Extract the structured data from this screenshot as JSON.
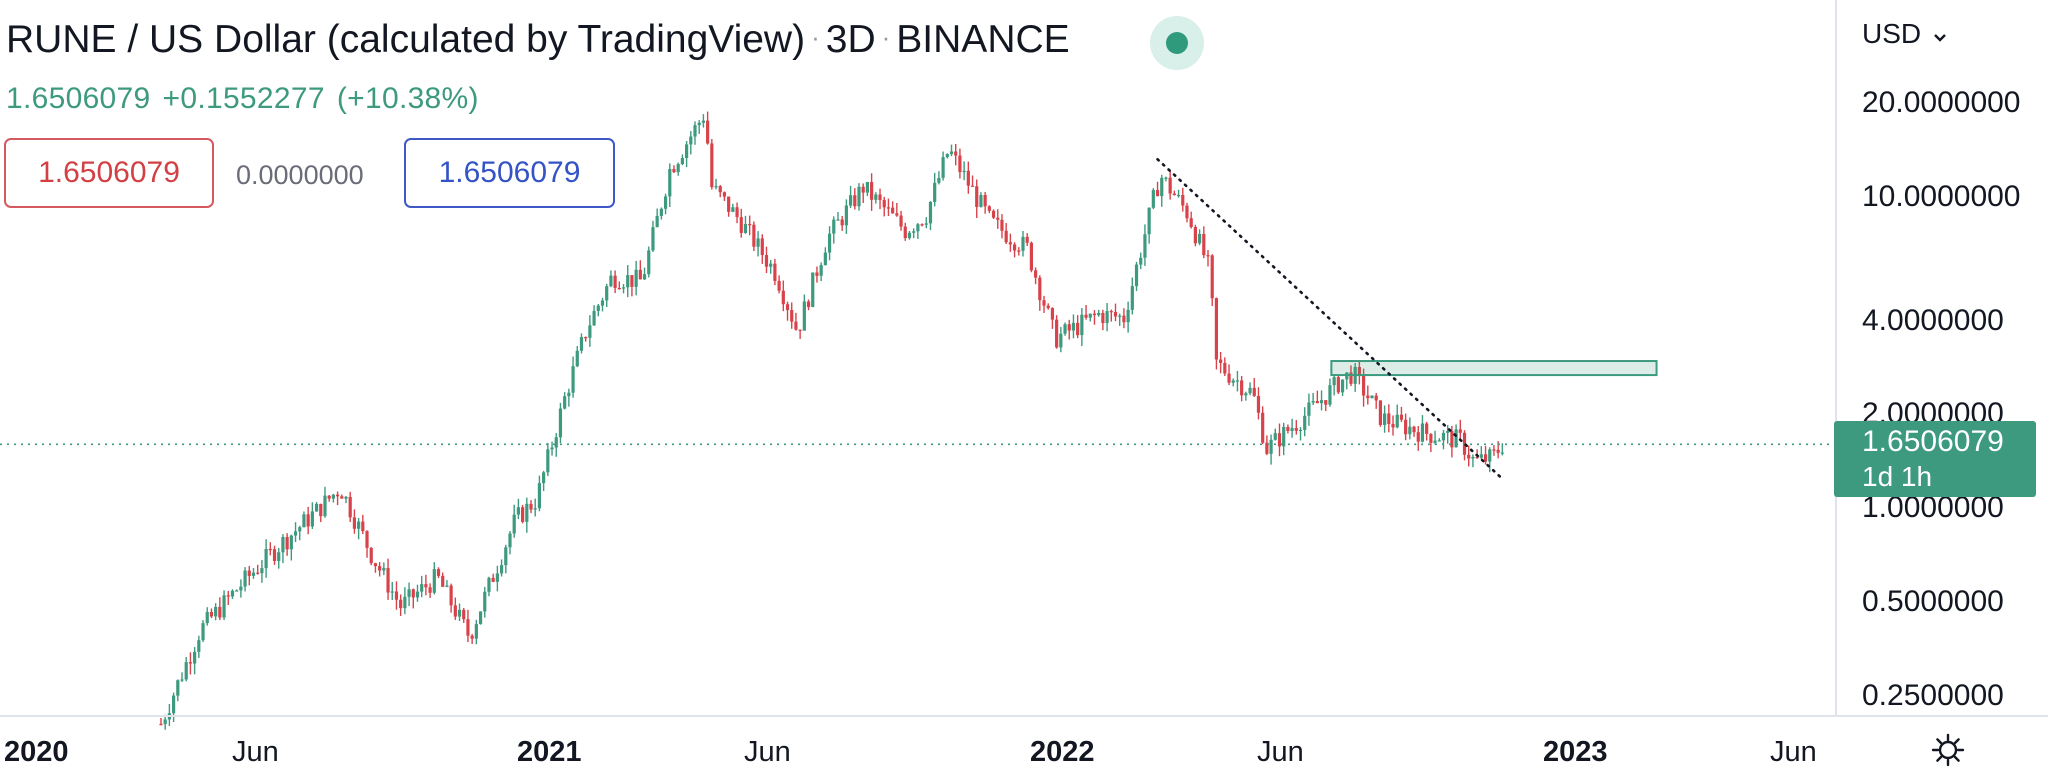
{
  "header": {
    "symbol": "RUNE / US Dollar (calculated by TradingView)",
    "interval": "3D",
    "exchange": "BINANCE",
    "separator": "·"
  },
  "quote": {
    "last": "1.6506079",
    "change": "+0.1552277",
    "change_pct": "(+10.38%)"
  },
  "order": {
    "bid": "1.6506079",
    "spread": "0.0000000",
    "ask": "1.6506079"
  },
  "price_axis": {
    "currency": "USD",
    "labels": [
      "20.0000000",
      "10.0000000",
      "4.0000000",
      "2.0000000",
      "1.0000000",
      "0.5000000",
      "0.2500000"
    ]
  },
  "last_price_tag": {
    "price": "1.6506079",
    "countdown": "1d 1h"
  },
  "time_axis": {
    "labels": [
      "2020",
      "Jun",
      "2021",
      "Jun",
      "2022",
      "Jun",
      "2023",
      "Jun"
    ]
  },
  "colors": {
    "up": "#3d9a7f",
    "down": "#d8434b",
    "accent": "#3d9a7f"
  },
  "icons": {
    "settings": "gear-icon",
    "dropdown": "chevron-down-icon"
  },
  "chart_data": {
    "type": "candlestick",
    "y_scale": "log",
    "ylim": [
      0.2,
      26
    ],
    "x_range": [
      "2020-01-01",
      "2023-08-15"
    ],
    "last_price": 1.6506079,
    "path": [
      [
        "2020-04-22",
        0.21
      ],
      [
        "2020-05-20",
        0.42
      ],
      [
        "2020-06-20",
        0.6
      ],
      [
        "2020-07-15",
        0.78
      ],
      [
        "2020-08-10",
        1.0
      ],
      [
        "2020-08-28",
        1.2
      ],
      [
        "2020-09-20",
        0.72
      ],
      [
        "2020-10-10",
        0.5
      ],
      [
        "2020-11-05",
        0.62
      ],
      [
        "2020-11-28",
        0.4
      ],
      [
        "2020-12-10",
        0.55
      ],
      [
        "2020-12-31",
        0.95
      ],
      [
        "2021-01-15",
        1.1
      ],
      [
        "2021-02-05",
        2.4
      ],
      [
        "2021-02-20",
        3.9
      ],
      [
        "2021-03-10",
        5.7
      ],
      [
        "2021-03-31",
        5.5
      ],
      [
        "2021-04-20",
        12.5
      ],
      [
        "2021-05-15",
        19.0
      ],
      [
        "2021-05-20",
        11.0
      ],
      [
        "2021-06-10",
        8.5
      ],
      [
        "2021-07-05",
        5.8
      ],
      [
        "2021-07-20",
        3.8
      ],
      [
        "2021-08-10",
        7.5
      ],
      [
        "2021-09-05",
        11.0
      ],
      [
        "2021-10-05",
        8.0
      ],
      [
        "2021-10-20",
        9.0
      ],
      [
        "2021-11-05",
        14.5
      ],
      [
        "2021-12-05",
        8.5
      ],
      [
        "2021-12-31",
        7.0
      ],
      [
        "2022-01-20",
        3.6
      ],
      [
        "2022-02-20",
        4.3
      ],
      [
        "2022-03-10",
        4.2
      ],
      [
        "2022-03-31",
        10.0
      ],
      [
        "2022-04-05",
        12.0
      ],
      [
        "2022-04-25",
        9.0
      ],
      [
        "2022-05-10",
        6.0
      ],
      [
        "2022-05-15",
        3.0
      ],
      [
        "2022-06-10",
        2.4
      ],
      [
        "2022-06-20",
        1.6
      ],
      [
        "2022-07-20",
        2.1
      ],
      [
        "2022-08-10",
        2.6
      ],
      [
        "2022-08-20",
        2.8
      ],
      [
        "2022-09-10",
        2.0
      ],
      [
        "2022-10-10",
        1.8
      ],
      [
        "2022-11-05",
        1.7
      ],
      [
        "2022-11-15",
        1.45
      ],
      [
        "2022-11-28",
        1.5
      ],
      [
        "2022-12-05",
        1.65
      ]
    ],
    "trendline": {
      "from": [
        "2022-04-03",
        13.5
      ],
      "to": [
        "2022-12-05",
        1.28
      ],
      "style": "dotted"
    },
    "resistance_zone": {
      "from_date": "2022-08-05",
      "to_date": "2023-03-25",
      "low": 2.75,
      "high": 3.05
    },
    "current_price_line": {
      "value": 1.6506079,
      "style": "dotted"
    }
  }
}
